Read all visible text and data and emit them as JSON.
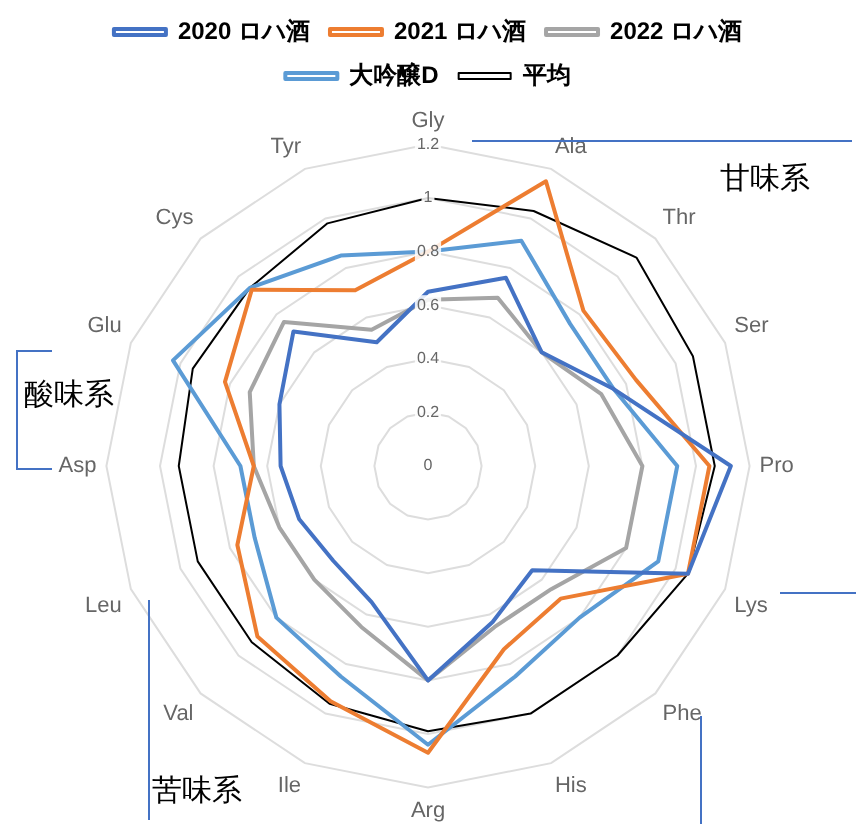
{
  "chart_data": {
    "type": "radar",
    "categories": [
      "Gly",
      "Ala",
      "Thr",
      "Ser",
      "Pro",
      "Lys",
      "Phe",
      "His",
      "Arg",
      "Ile",
      "Val",
      "Leu",
      "Asp",
      "Glu",
      "Cys",
      "Tyr"
    ],
    "series": [
      {
        "name": "2020 ロハ酒",
        "color": "#4472c4",
        "values": [
          0.65,
          0.76,
          0.6,
          0.75,
          1.13,
          1.05,
          0.55,
          0.63,
          0.8,
          0.55,
          0.5,
          0.52,
          0.55,
          0.6,
          0.71,
          0.5
        ]
      },
      {
        "name": "2021 ロハ酒",
        "color": "#ed7d31",
        "values": [
          0.8,
          1.15,
          0.82,
          0.84,
          1.05,
          1.05,
          0.7,
          0.74,
          1.07,
          0.95,
          0.9,
          0.77,
          0.65,
          0.82,
          0.93,
          0.71
        ]
      },
      {
        "name": "2022 ロハ酒",
        "color": "#a5a5a5",
        "values": [
          0.62,
          0.68,
          0.6,
          0.7,
          0.8,
          0.8,
          0.65,
          0.65,
          0.8,
          0.65,
          0.6,
          0.6,
          0.65,
          0.72,
          0.76,
          0.55
        ]
      },
      {
        "name": "大吟醸D",
        "color": "#5b9bd5",
        "values": [
          0.8,
          0.91,
          0.75,
          0.75,
          0.93,
          0.93,
          0.8,
          0.85,
          1.04,
          0.85,
          0.8,
          0.7,
          0.7,
          1.03,
          0.94,
          0.85
        ]
      },
      {
        "name": "平均",
        "color": "#000000",
        "values": [
          1.0,
          1.03,
          1.1,
          1.07,
          1.07,
          1.05,
          1.0,
          1.0,
          0.99,
          0.96,
          0.93,
          0.93,
          0.93,
          0.95,
          0.94,
          0.98
        ]
      }
    ],
    "ylim": [
      0,
      1.2
    ],
    "yticks": [
      0,
      0.2,
      0.4,
      0.6,
      0.8,
      1,
      1.2
    ],
    "legend": "top",
    "marker": "none",
    "annotations": [
      "甘味系",
      "酸味系",
      "苦味系"
    ]
  }
}
